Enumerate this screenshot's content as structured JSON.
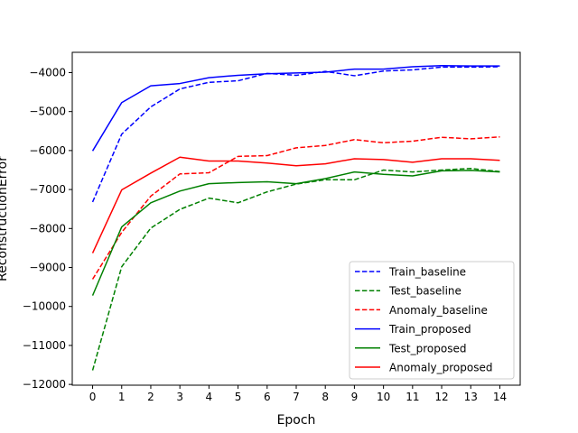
{
  "chart_data": {
    "type": "line",
    "title": "",
    "xlabel": "Epoch",
    "ylabel": "ReconstructionError",
    "x": [
      0,
      1,
      2,
      3,
      4,
      5,
      6,
      7,
      8,
      9,
      10,
      11,
      12,
      13,
      14
    ],
    "xlim": [
      -0.7,
      14.7
    ],
    "ylim": [
      -12020,
      -3480
    ],
    "yticks": [
      -12000,
      -11000,
      -10000,
      -9000,
      -8000,
      -7000,
      -6000,
      -5000,
      -4000
    ],
    "ytick_labels": [
      "−12000",
      "−11000",
      "−10000",
      "−9000",
      "−8000",
      "−7000",
      "−6000",
      "−5000",
      "−4000"
    ],
    "grid": false,
    "legend_position": "lower-right",
    "series": [
      {
        "name": "Train_baseline",
        "color": "#0000ff",
        "dash": "dashed",
        "values": [
          -7320,
          -5580,
          -4880,
          -4420,
          -4250,
          -4210,
          -4020,
          -4070,
          -3970,
          -4080,
          -3960,
          -3930,
          -3860,
          -3860,
          -3850
        ]
      },
      {
        "name": "Test_baseline",
        "color": "#008000",
        "dash": "dashed",
        "values": [
          -11640,
          -8980,
          -7990,
          -7510,
          -7220,
          -7340,
          -7060,
          -6860,
          -6750,
          -6750,
          -6500,
          -6550,
          -6500,
          -6460,
          -6540
        ]
      },
      {
        "name": "Anomaly_baseline",
        "color": "#ff0000",
        "dash": "dashed",
        "values": [
          -9300,
          -8100,
          -7170,
          -6600,
          -6570,
          -6150,
          -6130,
          -5930,
          -5870,
          -5720,
          -5800,
          -5760,
          -5660,
          -5700,
          -5650
        ]
      },
      {
        "name": "Train_proposed",
        "color": "#0000ff",
        "dash": "solid",
        "values": [
          -6010,
          -4770,
          -4340,
          -4280,
          -4130,
          -4070,
          -4030,
          -4010,
          -3990,
          -3910,
          -3910,
          -3850,
          -3820,
          -3830,
          -3830
        ]
      },
      {
        "name": "Test_proposed",
        "color": "#008000",
        "dash": "solid",
        "values": [
          -9720,
          -7960,
          -7340,
          -7040,
          -6850,
          -6820,
          -6800,
          -6850,
          -6720,
          -6550,
          -6610,
          -6650,
          -6520,
          -6510,
          -6550
        ]
      },
      {
        "name": "Anomaly_proposed",
        "color": "#ff0000",
        "dash": "solid",
        "values": [
          -8630,
          -7010,
          -6580,
          -6170,
          -6270,
          -6270,
          -6320,
          -6390,
          -6340,
          -6210,
          -6230,
          -6300,
          -6210,
          -6210,
          -6250
        ]
      }
    ]
  }
}
